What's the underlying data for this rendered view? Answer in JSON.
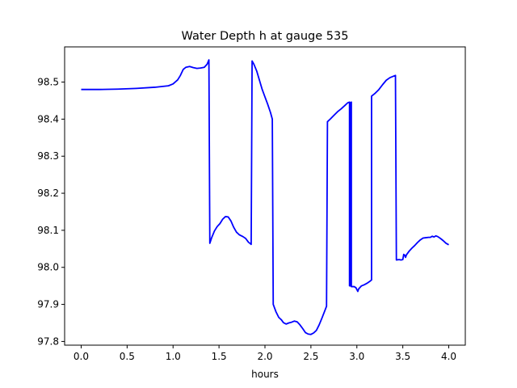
{
  "chart_data": {
    "type": "line",
    "title": "Water Depth h at gauge 535",
    "xlabel": "hours",
    "ylabel": "",
    "xlim": [
      -0.18,
      4.18
    ],
    "ylim": [
      97.79,
      98.595
    ],
    "xticks": [
      0.0,
      0.5,
      1.0,
      1.5,
      2.0,
      2.5,
      3.0,
      3.5,
      4.0
    ],
    "xtick_labels": [
      "0.0",
      "0.5",
      "1.0",
      "1.5",
      "2.0",
      "2.5",
      "3.0",
      "3.5",
      "4.0"
    ],
    "yticks": [
      97.8,
      97.9,
      98.0,
      98.1,
      98.2,
      98.3,
      98.4,
      98.5
    ],
    "ytick_labels": [
      "97.8",
      "97.9",
      "98.0",
      "98.1",
      "98.2",
      "98.3",
      "98.4",
      "98.5"
    ],
    "grid": false,
    "series": [
      {
        "color": "#0000ff",
        "points": [
          [
            0.0,
            98.48
          ],
          [
            0.2,
            98.48
          ],
          [
            0.4,
            98.481
          ],
          [
            0.6,
            98.483
          ],
          [
            0.8,
            98.486
          ],
          [
            0.95,
            98.49
          ],
          [
            1.0,
            98.495
          ],
          [
            1.05,
            98.506
          ],
          [
            1.08,
            98.518
          ],
          [
            1.11,
            98.534
          ],
          [
            1.14,
            98.54
          ],
          [
            1.18,
            98.542
          ],
          [
            1.22,
            98.539
          ],
          [
            1.26,
            98.537
          ],
          [
            1.3,
            98.538
          ],
          [
            1.34,
            98.54
          ],
          [
            1.37,
            98.548
          ],
          [
            1.39,
            98.56
          ],
          [
            1.4,
            98.065
          ],
          [
            1.42,
            98.08
          ],
          [
            1.45,
            98.098
          ],
          [
            1.48,
            98.11
          ],
          [
            1.51,
            98.118
          ],
          [
            1.54,
            98.13
          ],
          [
            1.57,
            98.137
          ],
          [
            1.6,
            98.136
          ],
          [
            1.63,
            98.125
          ],
          [
            1.66,
            98.108
          ],
          [
            1.69,
            98.095
          ],
          [
            1.72,
            98.088
          ],
          [
            1.76,
            98.083
          ],
          [
            1.79,
            98.078
          ],
          [
            1.82,
            98.068
          ],
          [
            1.85,
            98.062
          ],
          [
            1.86,
            98.557
          ],
          [
            1.88,
            98.548
          ],
          [
            1.91,
            98.53
          ],
          [
            1.94,
            98.505
          ],
          [
            1.97,
            98.48
          ],
          [
            2.0,
            98.46
          ],
          [
            2.03,
            98.44
          ],
          [
            2.06,
            98.418
          ],
          [
            2.08,
            98.4
          ],
          [
            2.09,
            97.9
          ],
          [
            2.12,
            97.88
          ],
          [
            2.15,
            97.865
          ],
          [
            2.18,
            97.858
          ],
          [
            2.2,
            97.851
          ],
          [
            2.23,
            97.847
          ],
          [
            2.26,
            97.85
          ],
          [
            2.29,
            97.852
          ],
          [
            2.32,
            97.855
          ],
          [
            2.35,
            97.853
          ],
          [
            2.38,
            97.845
          ],
          [
            2.41,
            97.835
          ],
          [
            2.44,
            97.824
          ],
          [
            2.47,
            97.82
          ],
          [
            2.5,
            97.819
          ],
          [
            2.53,
            97.823
          ],
          [
            2.56,
            97.83
          ],
          [
            2.59,
            97.845
          ],
          [
            2.62,
            97.863
          ],
          [
            2.65,
            97.882
          ],
          [
            2.67,
            97.895
          ],
          [
            2.68,
            98.393
          ],
          [
            2.71,
            98.4
          ],
          [
            2.75,
            98.41
          ],
          [
            2.79,
            98.42
          ],
          [
            2.83,
            98.428
          ],
          [
            2.87,
            98.437
          ],
          [
            2.9,
            98.444
          ],
          [
            2.92,
            98.446
          ],
          [
            2.92,
            97.95
          ],
          [
            2.935,
            97.95
          ],
          [
            2.935,
            98.445
          ],
          [
            2.94,
            98.446
          ],
          [
            2.94,
            97.948
          ],
          [
            2.97,
            97.948
          ],
          [
            2.99,
            97.945
          ],
          [
            3.0,
            97.94
          ],
          [
            3.01,
            97.935
          ],
          [
            3.02,
            97.942
          ],
          [
            3.05,
            97.95
          ],
          [
            3.08,
            97.953
          ],
          [
            3.11,
            97.957
          ],
          [
            3.14,
            97.962
          ],
          [
            3.16,
            97.966
          ],
          [
            3.16,
            98.462
          ],
          [
            3.2,
            98.47
          ],
          [
            3.24,
            98.48
          ],
          [
            3.28,
            98.493
          ],
          [
            3.32,
            98.505
          ],
          [
            3.36,
            98.512
          ],
          [
            3.4,
            98.516
          ],
          [
            3.42,
            98.518
          ],
          [
            3.43,
            98.02
          ],
          [
            3.46,
            98.021
          ],
          [
            3.48,
            98.02
          ],
          [
            3.5,
            98.021
          ],
          [
            3.51,
            98.035
          ],
          [
            3.52,
            98.033
          ],
          [
            3.53,
            98.027
          ],
          [
            3.54,
            98.034
          ],
          [
            3.57,
            98.044
          ],
          [
            3.6,
            98.052
          ],
          [
            3.63,
            98.059
          ],
          [
            3.66,
            98.067
          ],
          [
            3.69,
            98.074
          ],
          [
            3.72,
            98.079
          ],
          [
            3.75,
            98.08
          ],
          [
            3.78,
            98.081
          ],
          [
            3.8,
            98.081
          ],
          [
            3.82,
            98.084
          ],
          [
            3.84,
            98.082
          ],
          [
            3.86,
            98.085
          ],
          [
            3.88,
            98.083
          ],
          [
            3.91,
            98.078
          ],
          [
            3.94,
            98.072
          ],
          [
            3.97,
            98.065
          ],
          [
            4.0,
            98.061
          ]
        ]
      }
    ]
  }
}
